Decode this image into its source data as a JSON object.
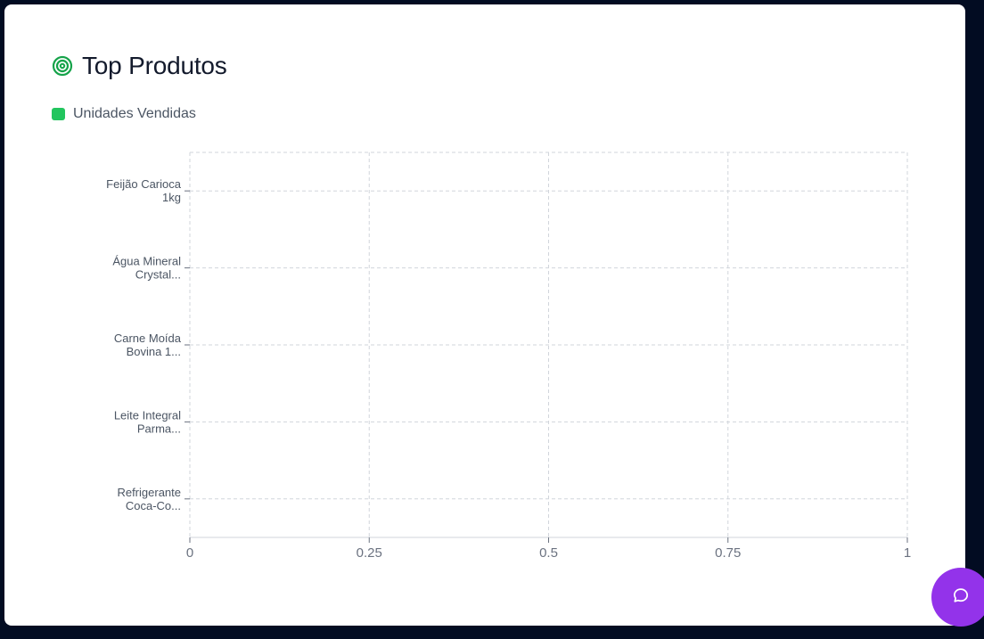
{
  "widget": {
    "title": "Top Produtos",
    "title_icon": "target-icon",
    "icon_color": "#16a34a",
    "chat_icon": "chat-bubble-icon",
    "chat_color": "#9333ea"
  },
  "chart_data": {
    "type": "bar",
    "orientation": "horizontal",
    "title": "Top Produtos",
    "xlabel": "",
    "ylabel": "",
    "categories": [
      [
        "Feijão Carioca",
        "1kg"
      ],
      [
        "Água Mineral",
        "Crystal..."
      ],
      [
        "Carne Moída",
        "Bovina 1..."
      ],
      [
        "Leite Integral",
        "Parma..."
      ],
      [
        "Refrigerante",
        "Coca-Co..."
      ]
    ],
    "series": [
      {
        "name": "Unidades Vendidas",
        "color": "#22c55e",
        "values": [
          0,
          0,
          0,
          0,
          0
        ]
      }
    ],
    "xlim": [
      0,
      1
    ],
    "xticks": [
      "0",
      "0.25",
      "0.5",
      "0.75",
      "1"
    ],
    "grid": true,
    "legend": "top-left"
  }
}
